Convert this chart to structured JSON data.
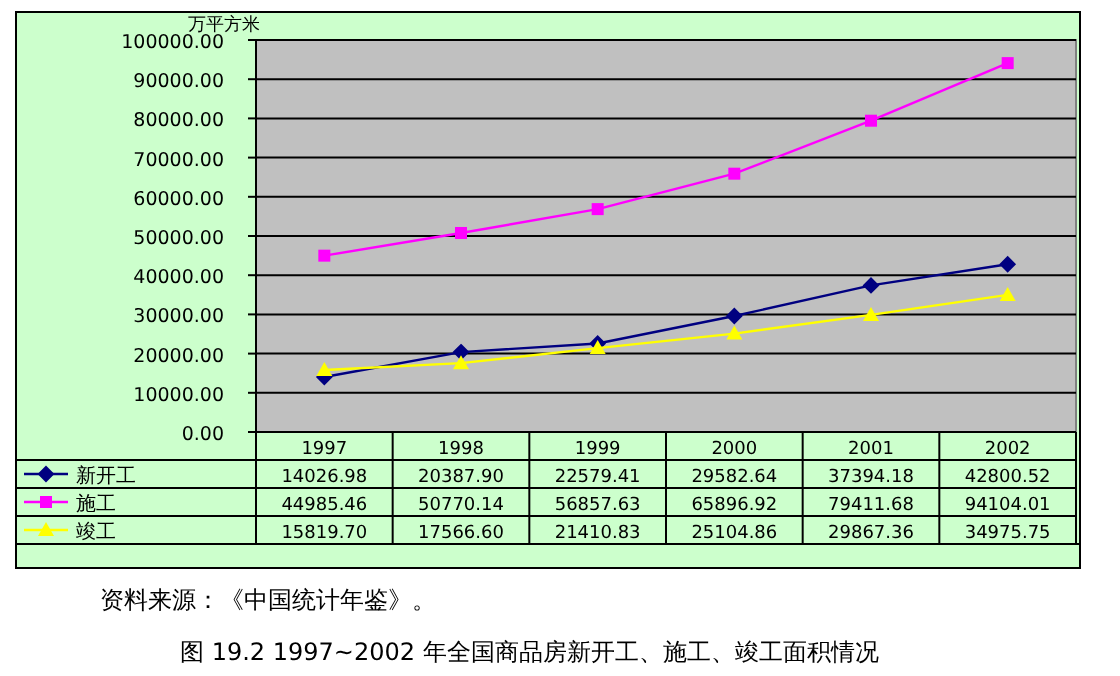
{
  "chart_data": {
    "type": "line",
    "title": "图 19.2   1997~2002 年全国商品房新开工、施工、竣工面积情况",
    "ylabel": "万平方米",
    "annotations": [
      "资料来源：《中国统计年鉴》。"
    ],
    "categories": [
      "1997",
      "1998",
      "1999",
      "2000",
      "2001",
      "2002"
    ],
    "series": [
      {
        "name": "新开工",
        "color": "#000080",
        "marker": "diamond",
        "values": [
          14026.98,
          20387.9,
          22579.41,
          29582.64,
          37394.18,
          42800.52
        ],
        "value_labels": [
          "14026.98",
          "20387.90",
          "22579.41",
          "29582.64",
          "37394.18",
          "42800.52"
        ]
      },
      {
        "name": "施工",
        "color": "#ff00ff",
        "marker": "square",
        "values": [
          44985.46,
          50770.14,
          56857.63,
          65896.92,
          79411.68,
          94104.01
        ],
        "value_labels": [
          "44985.46",
          "50770.14",
          "56857.63",
          "65896.92",
          "79411.68",
          "94104.01"
        ]
      },
      {
        "name": "竣工",
        "color": "#ffff00",
        "marker": "triangle",
        "values": [
          15819.7,
          17566.6,
          21410.83,
          25104.86,
          29867.36,
          34975.75
        ],
        "value_labels": [
          "15819.70",
          "17566.60",
          "21410.83",
          "25104.86",
          "29867.36",
          "34975.75"
        ]
      }
    ],
    "ylim": [
      0,
      100000
    ],
    "yticks": [
      {
        "value": 0,
        "label": "0.00"
      },
      {
        "value": 10000,
        "label": "10000.00"
      },
      {
        "value": 20000,
        "label": "20000.00"
      },
      {
        "value": 30000,
        "label": "30000.00"
      },
      {
        "value": 40000,
        "label": "40000.00"
      },
      {
        "value": 50000,
        "label": "50000.00"
      },
      {
        "value": 60000,
        "label": "60000.00"
      },
      {
        "value": 70000,
        "label": "70000.00"
      },
      {
        "value": 80000,
        "label": "80000.00"
      },
      {
        "value": 90000,
        "label": "90000.00"
      },
      {
        "value": 100000,
        "label": "100000.00"
      }
    ],
    "grid": "y",
    "legend": "bottom"
  }
}
